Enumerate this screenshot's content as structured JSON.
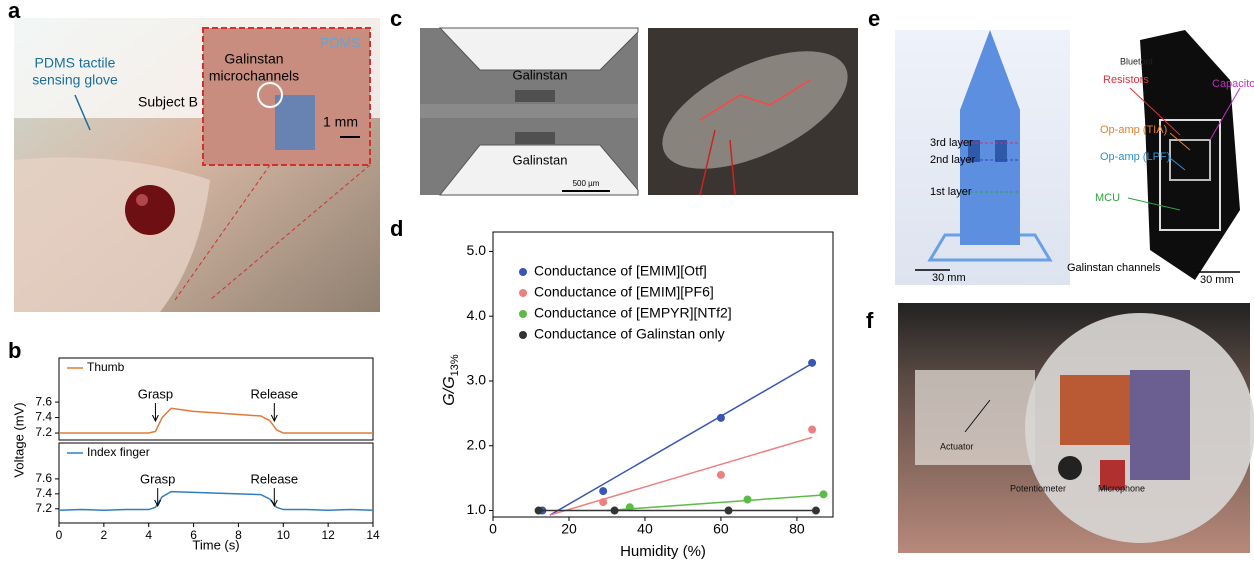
{
  "panel_labels": [
    "a",
    "b",
    "c",
    "d",
    "e",
    "f"
  ],
  "photo_a": {
    "labels": [
      "PDMS tactile",
      "sensing glove",
      "Subject B",
      "Galinstan",
      "microchannels",
      "PDMS",
      "1 mm"
    ]
  },
  "photo_c": {
    "labels": [
      "Galinstan",
      "Galinstan",
      "500 µm"
    ]
  },
  "photo_e": {
    "labels": [
      "3rd layer",
      "2nd layer",
      "1st layer",
      "30 mm",
      "Bluetoot",
      "Resistors",
      "Capacito",
      "Op-amp (TIA)",
      "Op-amp (LPF)",
      "MCU",
      "Galinstan channels",
      "30 mm"
    ]
  },
  "photo_f": {
    "labels": [
      "Actuator",
      "Potentiometer",
      "Microphone"
    ]
  },
  "chart_data": [
    {
      "type": "line",
      "ylabel": "Voltage (mV)",
      "x": [
        0,
        1,
        2,
        3,
        4,
        4.3,
        4.6,
        5,
        6,
        7,
        8,
        9,
        9.4,
        9.7,
        10,
        11,
        12,
        13,
        14
      ],
      "series": [
        {
          "name": "Thumb",
          "color": "#e07a3a",
          "values": [
            7.2,
            7.2,
            7.2,
            7.2,
            7.2,
            7.22,
            7.4,
            7.52,
            7.48,
            7.46,
            7.44,
            7.42,
            7.36,
            7.24,
            7.2,
            7.2,
            7.2,
            7.2,
            7.2
          ]
        }
      ],
      "annotations": [
        {
          "text": "Grasp",
          "x": 4.3
        },
        {
          "text": "Release",
          "x": 9.6
        }
      ],
      "xlim": [
        0,
        14
      ],
      "ylim": [
        7.11,
        8.17
      ],
      "yticks": [
        7.2,
        7.4,
        7.6
      ]
    },
    {
      "type": "line",
      "xlabel": "Time (s)",
      "x": [
        0,
        1,
        2,
        3,
        4,
        4.3,
        4.6,
        5,
        6,
        7,
        8,
        9,
        9.4,
        9.7,
        10,
        11,
        12,
        13,
        14
      ],
      "series": [
        {
          "name": "Index finger",
          "color": "#2f7fc0",
          "values": [
            7.18,
            7.19,
            7.18,
            7.19,
            7.19,
            7.22,
            7.36,
            7.43,
            7.42,
            7.41,
            7.4,
            7.39,
            7.33,
            7.22,
            7.19,
            7.19,
            7.18,
            7.19,
            7.18
          ]
        }
      ],
      "annotations": [
        {
          "text": "Grasp",
          "x": 4.4
        },
        {
          "text": "Release",
          "x": 9.6
        }
      ],
      "xlim": [
        0,
        14
      ],
      "ylim": [
        7.01,
        8.08
      ],
      "yticks": [
        7.2,
        7.4,
        7.6
      ],
      "xticks": [
        0,
        2,
        4,
        6,
        8,
        10,
        12,
        14
      ]
    },
    {
      "type": "scatter",
      "xlabel": "Humidity (%)",
      "ylabel": "G/G",
      "ylabel_subscript": "13%",
      "series": [
        {
          "name": "Conductance of [EMIM][Otf]",
          "color": "#3a55b8",
          "x": [
            13,
            29,
            60,
            84
          ],
          "values": [
            1.0,
            1.3,
            2.43,
            3.28
          ],
          "fit_x": [
            15,
            84
          ],
          "fit_y": [
            0.93,
            3.27
          ]
        },
        {
          "name": "Conductance of [EMIM][PF6]",
          "color": "#ee7f7f",
          "x": [
            29,
            60,
            84
          ],
          "values": [
            1.13,
            1.55,
            2.25
          ],
          "fit_x": [
            15,
            84
          ],
          "fit_y": [
            0.93,
            2.13
          ]
        },
        {
          "name": "Conductance of [EMPYR][NTf2]",
          "color": "#5cbb45",
          "x": [
            36,
            67,
            87
          ],
          "values": [
            1.05,
            1.17,
            1.25
          ],
          "fit_x": [
            30,
            87
          ],
          "fit_y": [
            1.0,
            1.24
          ]
        },
        {
          "name": "Conductance of Galinstan only",
          "color": "#333333",
          "x": [
            12,
            32,
            62,
            85
          ],
          "values": [
            1.0,
            1.0,
            1.0,
            1.0
          ],
          "fit_x": [
            12,
            86
          ],
          "fit_y": [
            1.0,
            1.0
          ]
        }
      ],
      "xlim": [
        0,
        89.5
      ],
      "ylim": [
        0.9,
        5.3
      ],
      "xticks": [
        0,
        20,
        40,
        60,
        80
      ],
      "yticks": [
        {
          "value": 1,
          "label": "1.0"
        },
        {
          "value": 2,
          "label": "2.0"
        },
        {
          "value": 3,
          "label": "3.0"
        },
        {
          "value": 4,
          "label": "4.0"
        },
        {
          "value": 5,
          "label": "5.0"
        }
      ]
    }
  ]
}
